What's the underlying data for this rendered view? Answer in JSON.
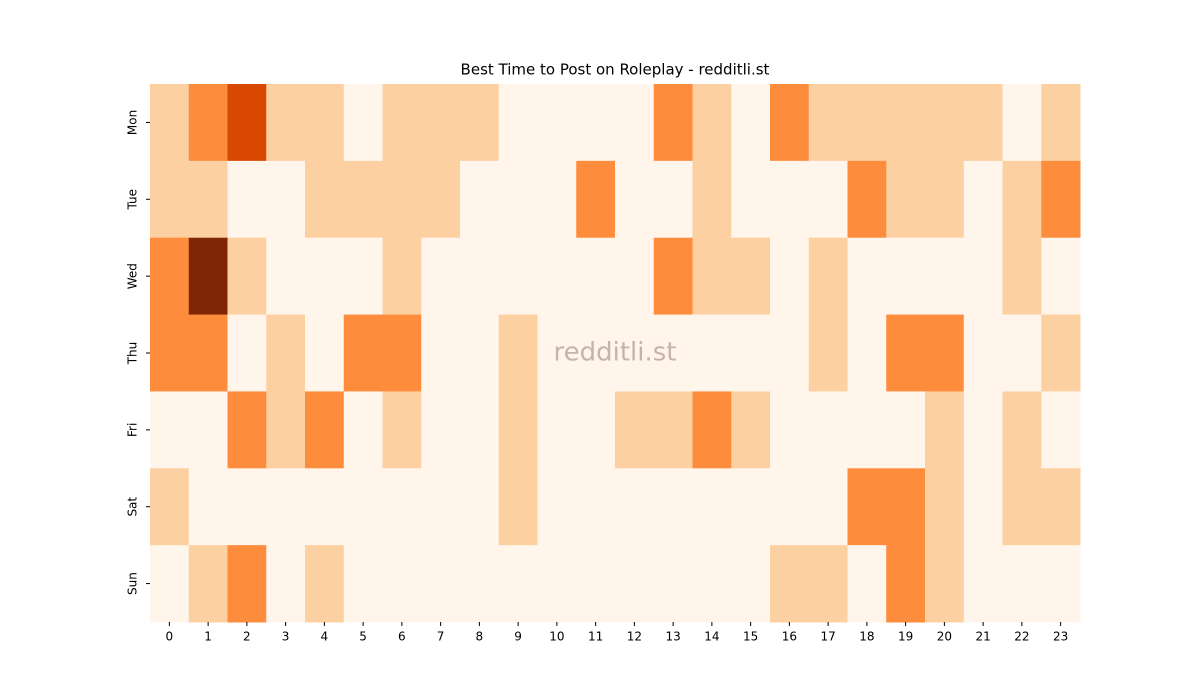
{
  "chart_data": {
    "type": "heatmap",
    "title": "Best Time to Post on Roleplay - redditli.st",
    "annotation": "redditli.st",
    "x": [
      0,
      1,
      2,
      3,
      4,
      5,
      6,
      7,
      8,
      9,
      10,
      11,
      12,
      13,
      14,
      15,
      16,
      17,
      18,
      19,
      20,
      21,
      22,
      23
    ],
    "y": [
      "Mon",
      "Tue",
      "Wed",
      "Thu",
      "Fri",
      "Sat",
      "Sun"
    ],
    "values": [
      [
        1,
        2,
        3,
        1,
        1,
        0,
        1,
        1,
        1,
        0,
        0,
        0,
        0,
        2,
        1,
        0,
        2,
        1,
        1,
        1,
        1,
        1,
        0,
        1
      ],
      [
        1,
        1,
        0,
        0,
        1,
        1,
        1,
        1,
        0,
        0,
        0,
        2,
        0,
        0,
        1,
        0,
        0,
        0,
        2,
        1,
        1,
        0,
        1,
        2
      ],
      [
        2,
        4,
        1,
        0,
        0,
        0,
        1,
        0,
        0,
        0,
        0,
        0,
        0,
        2,
        1,
        1,
        0,
        1,
        0,
        0,
        0,
        0,
        1,
        0
      ],
      [
        2,
        2,
        0,
        1,
        0,
        2,
        2,
        0,
        0,
        1,
        0,
        0,
        0,
        0,
        0,
        0,
        0,
        1,
        0,
        2,
        2,
        0,
        0,
        1
      ],
      [
        0,
        0,
        2,
        1,
        2,
        0,
        1,
        0,
        0,
        1,
        0,
        0,
        1,
        1,
        2,
        1,
        0,
        0,
        0,
        0,
        1,
        0,
        1,
        0
      ],
      [
        1,
        0,
        0,
        0,
        0,
        0,
        0,
        0,
        0,
        1,
        0,
        0,
        0,
        0,
        0,
        0,
        0,
        0,
        2,
        2,
        1,
        0,
        1,
        1
      ],
      [
        0,
        1,
        2,
        0,
        1,
        0,
        0,
        0,
        0,
        0,
        0,
        0,
        0,
        0,
        0,
        0,
        1,
        1,
        0,
        2,
        1,
        0,
        0,
        0
      ]
    ],
    "zlim": [
      0,
      4
    ],
    "colormap": [
      "#fff5eb",
      "#fdd0a2",
      "#fd8d3c",
      "#d94801",
      "#7f2704"
    ]
  }
}
